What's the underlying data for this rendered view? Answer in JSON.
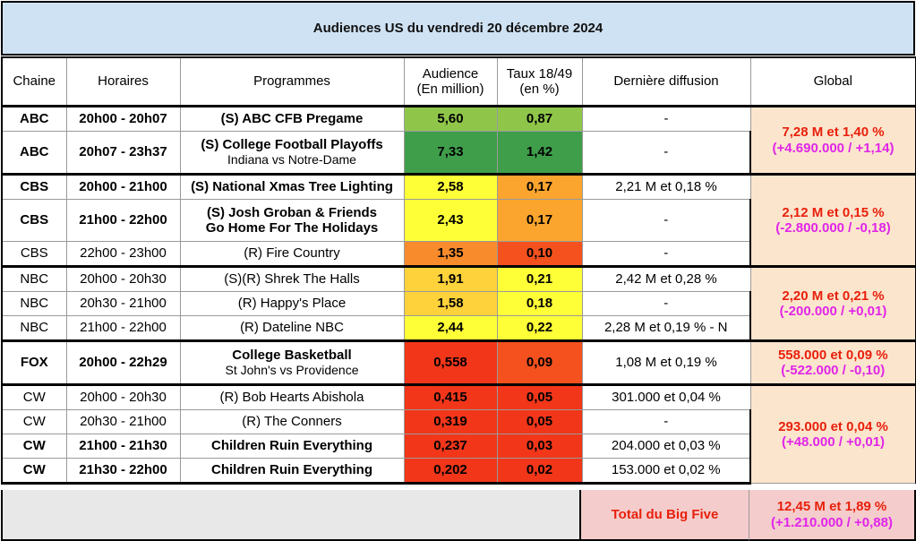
{
  "title": "Audiences US du vendredi 20 décembre 2024",
  "headers": {
    "chaine": "Chaine",
    "horaires": "Horaires",
    "programmes": "Programmes",
    "audience_1": "Audience",
    "audience_2": "(En million)",
    "taux_1": "Taux 18/49",
    "taux_2": "(en %)",
    "derniere": "Dernière diffusion",
    "global": "Global"
  },
  "colors": {
    "dark_green": "#3f9e4a",
    "light_green": "#8fc64a",
    "yellow": "#ffff38",
    "yellow_orange": "#fed23a",
    "orange": "#fba52f",
    "dark_orange": "#f88b2c",
    "red_orange": "#f4511e",
    "red": "#f2361a",
    "global_bg": "#fce5cd",
    "total_bg": "#f4cccc",
    "header_bg": "#cfe2f3"
  },
  "rows": [
    {
      "chaine": "ABC",
      "horaires": "20h00 - 20h07",
      "programme": "(S) ABC CFB Pregame",
      "sub": "",
      "audience": "5,60",
      "taux": "0,87",
      "derniere": "-"
    },
    {
      "chaine": "ABC",
      "horaires": "20h07 - 23h37",
      "programme": "(S) College Football Playoffs",
      "sub": "Indiana vs Notre-Dame",
      "audience": "7,33",
      "taux": "1,42",
      "derniere": "-"
    },
    {
      "chaine": "CBS",
      "horaires": "20h00 - 21h00",
      "programme": "(S) National Xmas Tree Lighting",
      "sub": "",
      "audience": "2,58",
      "taux": "0,17",
      "derniere": "2,21 M et 0,18 %"
    },
    {
      "chaine": "CBS",
      "horaires": "21h00 - 22h00",
      "programme": "(S) Josh Groban & Friends",
      "sub": "Go Home For The Holidays",
      "audience": "2,43",
      "taux": "0,17",
      "derniere": "-"
    },
    {
      "chaine": "CBS",
      "horaires": "22h00 - 23h00",
      "programme": "(R) Fire Country",
      "sub": "",
      "audience": "1,35",
      "taux": "0,10",
      "derniere": "-"
    },
    {
      "chaine": "NBC",
      "horaires": "20h00 - 20h30",
      "programme": "(S)(R) Shrek The Halls",
      "sub": "",
      "audience": "1,91",
      "taux": "0,21",
      "derniere": "2,42 M et 0,28 %"
    },
    {
      "chaine": "NBC",
      "horaires": "20h30 - 21h00",
      "programme": "(R) Happy's Place",
      "sub": "",
      "audience": "1,58",
      "taux": "0,18",
      "derniere": "-"
    },
    {
      "chaine": "NBC",
      "horaires": "21h00 - 22h00",
      "programme": "(R) Dateline NBC",
      "sub": "",
      "audience": "2,44",
      "taux": "0,22",
      "derniere": "2,28 M et 0,19 % - N"
    },
    {
      "chaine": "FOX",
      "horaires": "20h00 - 22h29",
      "programme": "College Basketball",
      "sub": "St John's vs Providence",
      "audience": "0,558",
      "taux": "0,09",
      "derniere": "1,08 M et 0,19 %"
    },
    {
      "chaine": "CW",
      "horaires": "20h00 - 20h30",
      "programme": "(R) Bob Hearts Abishola",
      "sub": "",
      "audience": "0,415",
      "taux": "0,05",
      "derniere": "301.000 et 0,04 %"
    },
    {
      "chaine": "CW",
      "horaires": "20h30 - 21h00",
      "programme": "(R) The Conners",
      "sub": "",
      "audience": "0,319",
      "taux": "0,05",
      "derniere": "-"
    },
    {
      "chaine": "CW",
      "horaires": "21h00 - 21h30",
      "programme": "Children Ruin Everything",
      "sub": "",
      "audience": "0,237",
      "taux": "0,03",
      "derniere": "204.000 et 0,03 %"
    },
    {
      "chaine": "CW",
      "horaires": "21h30 - 22h00",
      "programme": "Children Ruin Everything",
      "sub": "",
      "audience": "0,202",
      "taux": "0,02",
      "derniere": "153.000 et 0,02 %"
    }
  ],
  "globals": {
    "abc": {
      "line1": "7,28 M et 1,40 %",
      "line2": "(+4.690.000 / +1,14)"
    },
    "cbs": {
      "line1": "2,12 M et 0,15 %",
      "line2": "(-2.800.000 / -0,18)"
    },
    "nbc": {
      "line1": "2,20 M et 0,21 %",
      "line2": "(-200.000 / +0,01)"
    },
    "fox": {
      "line1": "558.000 et 0,09 %",
      "line2": "(-522.000 / -0,10)"
    },
    "cw": {
      "line1": "293.000 et 0,04 %",
      "line2": "(+48.000 / +0,01)"
    }
  },
  "total": {
    "label": "Total du Big Five",
    "line1": "12,45 M et 1,89 %",
    "line2": "(+1.210.000 / +0,88)"
  }
}
